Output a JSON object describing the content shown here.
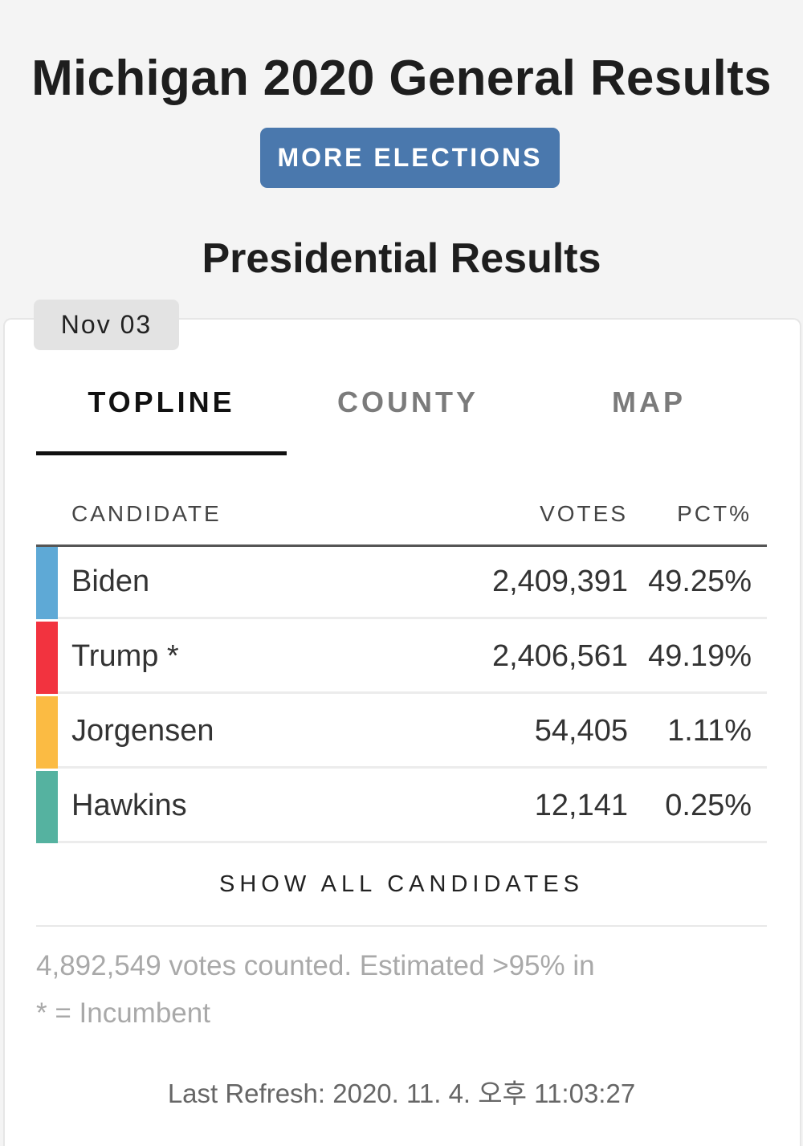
{
  "header": {
    "title": "Michigan 2020 General Results",
    "more_button": "MORE ELECTIONS",
    "section_title": "Presidential Results"
  },
  "date_badge": "Nov 03",
  "tabs": [
    {
      "label": "TOPLINE",
      "active": true
    },
    {
      "label": "COUNTY",
      "active": false
    },
    {
      "label": "MAP",
      "active": false
    }
  ],
  "table": {
    "columns": [
      "CANDIDATE",
      "VOTES",
      "PCT%"
    ],
    "rows": [
      {
        "name": "Biden",
        "votes": "2,409,391",
        "pct": "49.25%",
        "color": "#5ea9d6"
      },
      {
        "name": "Trump *",
        "votes": "2,406,561",
        "pct": "49.19%",
        "color": "#f2333f"
      },
      {
        "name": "Jorgensen",
        "votes": "54,405",
        "pct": "1.11%",
        "color": "#fbbb43"
      },
      {
        "name": "Hawkins",
        "votes": "12,141",
        "pct": "0.25%",
        "color": "#55b2a0"
      }
    ]
  },
  "show_all": "SHOW ALL CANDIDATES",
  "footer": {
    "votes_counted": "4,892,549 votes counted. Estimated >95% in",
    "incumbent_note": "* = Incumbent",
    "last_refresh": "Last Refresh: 2020. 11. 4. 오후 11:03:27"
  }
}
